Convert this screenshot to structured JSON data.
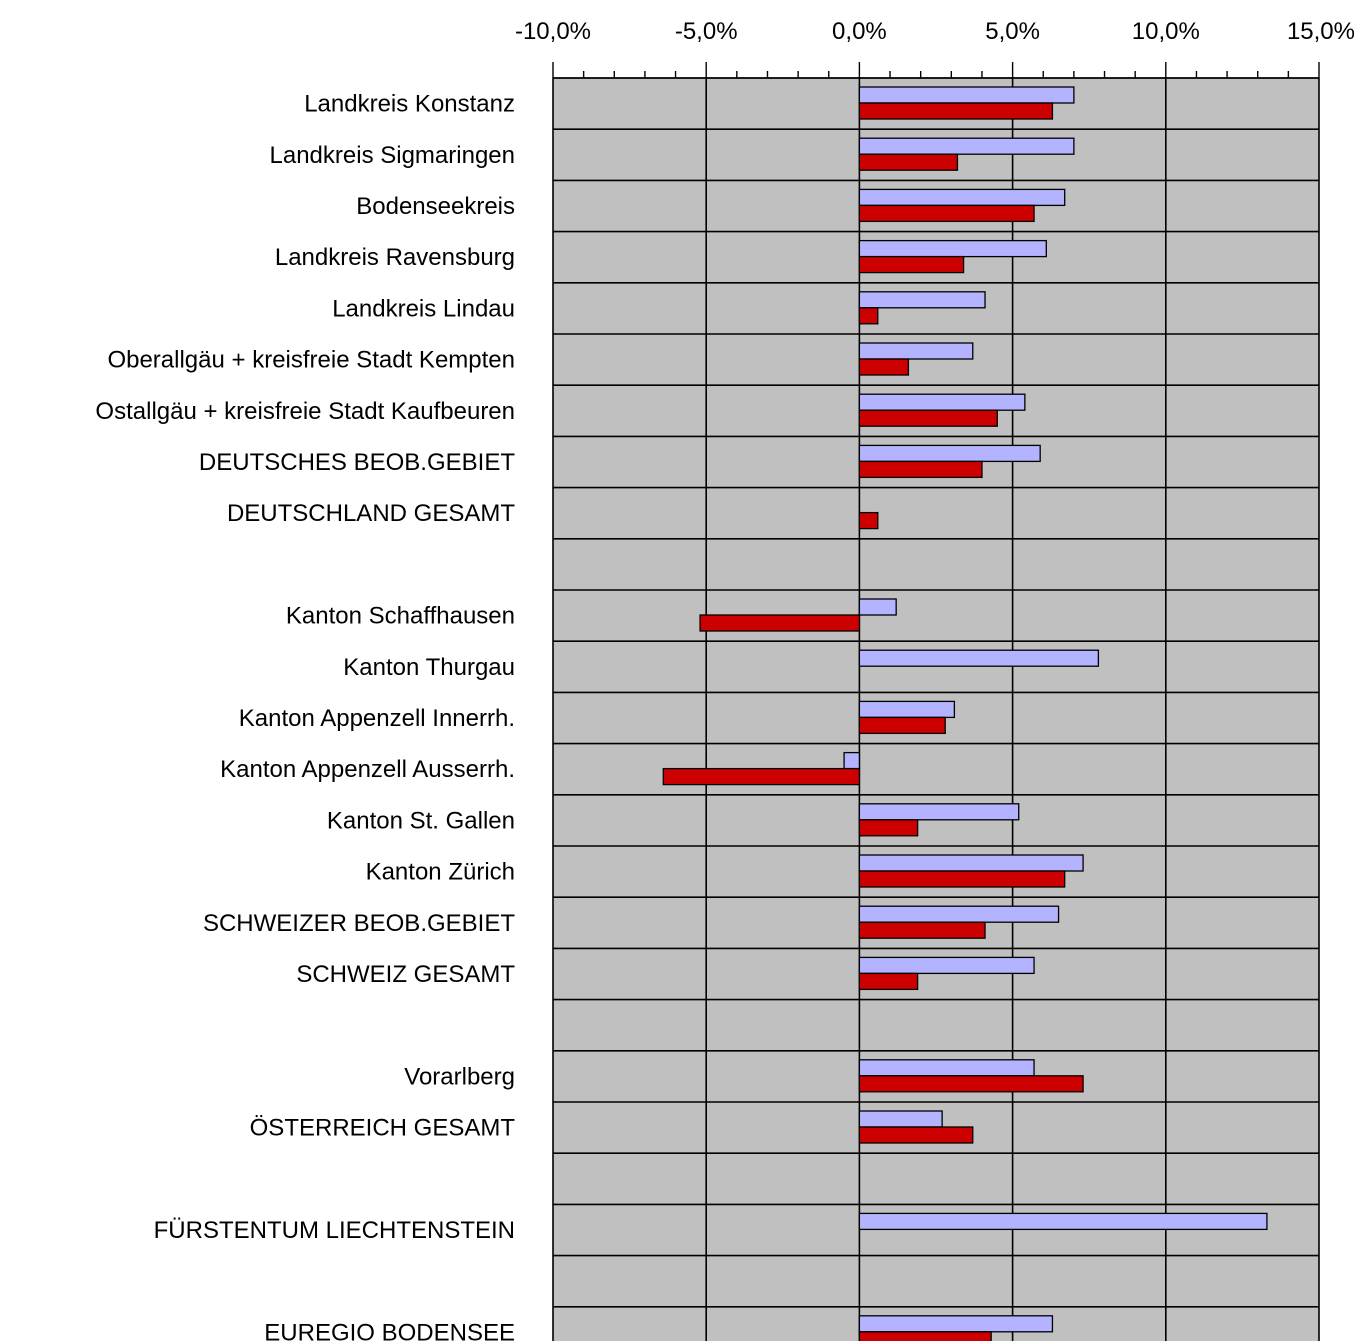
{
  "chart_data": {
    "type": "bar",
    "orientation": "horizontal",
    "x_ticks": [
      "-10,0%",
      "-5,0%",
      "0,0%",
      "5,0%",
      "10,0%",
      "15,0%"
    ],
    "xlim": [
      -10,
      15
    ],
    "x_axis_position": "top",
    "grid": true,
    "legend": "none",
    "colors": {
      "series_a": "#b3b3ff",
      "series_b": "#cc0000",
      "plot_background": "#c0c0c0",
      "grid": "#000000",
      "bar_border": "#000000"
    },
    "categories": [
      "Landkreis Konstanz",
      "Landkreis Sigmaringen",
      "Bodenseekreis",
      "Landkreis Ravensburg",
      "Landkreis Lindau",
      "Oberallgäu + kreisfreie Stadt Kempten",
      "Ostallgäu + kreisfreie Stadt Kaufbeuren",
      "DEUTSCHES BEOB.GEBIET",
      "DEUTSCHLAND GESAMT",
      "",
      "Kanton Schaffhausen",
      "Kanton Thurgau",
      "Kanton Appenzell Innerrh.",
      "Kanton Appenzell Ausserrh.",
      "Kanton St. Gallen",
      "Kanton Zürich",
      "SCHWEIZER BEOB.GEBIET",
      "SCHWEIZ GESAMT",
      "",
      "Vorarlberg",
      "ÖSTERREICH GESAMT",
      "",
      "FÜRSTENTUM LIECHTENSTEIN",
      "",
      "EUREGIO BODENSEE"
    ],
    "series": [
      {
        "values": [
          7.0,
          7.0,
          6.7,
          6.1,
          4.1,
          3.7,
          5.4,
          5.9,
          null,
          null,
          1.2,
          7.8,
          3.1,
          -0.5,
          5.2,
          7.3,
          6.5,
          5.7,
          null,
          5.7,
          2.7,
          null,
          13.3,
          null,
          6.3
        ]
      },
      {
        "values": [
          6.3,
          3.2,
          5.7,
          3.4,
          0.6,
          1.6,
          4.5,
          4.0,
          0.6,
          null,
          -5.2,
          null,
          2.8,
          -6.4,
          1.9,
          6.7,
          4.1,
          1.9,
          null,
          7.3,
          3.7,
          null,
          null,
          null,
          4.3
        ]
      }
    ]
  }
}
